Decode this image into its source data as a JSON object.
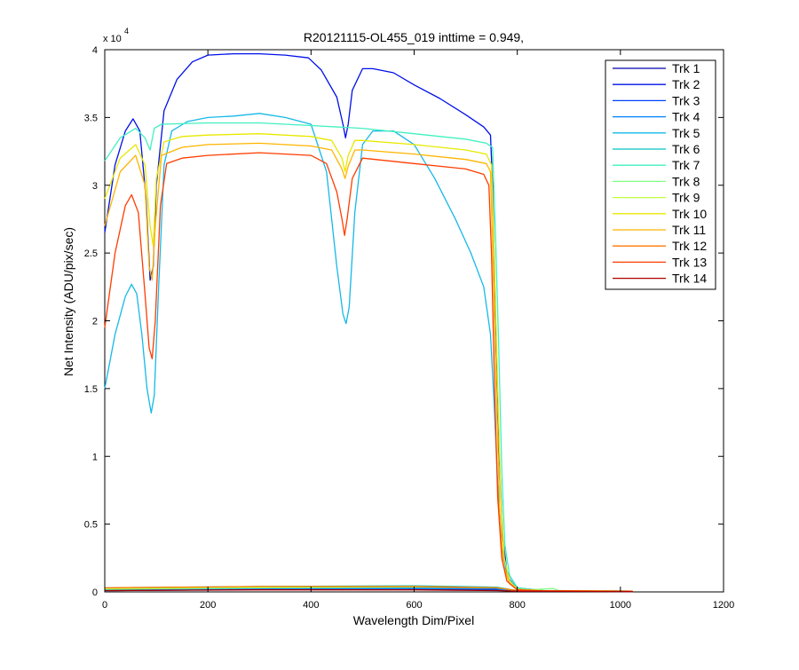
{
  "chart_data": {
    "type": "line",
    "title": "R20121115-OL455_019 inttime = 0.949,",
    "xlabel": "Wavelength Dim/Pixel",
    "ylabel": "Net Intensity (ADU/pix/sec)",
    "y_exponent_label": "x 10",
    "y_exponent_power": "4",
    "xlim": [
      0,
      1200
    ],
    "ylim": [
      0,
      40000
    ],
    "xticks": [
      0,
      200,
      400,
      600,
      800,
      1000,
      1200
    ],
    "xtick_labels": [
      "0",
      "200",
      "400",
      "600",
      "800",
      "1000",
      "1200"
    ],
    "yticks": [
      0,
      5000,
      10000,
      15000,
      20000,
      25000,
      30000,
      35000,
      40000
    ],
    "ytick_labels": [
      "0",
      "0.5",
      "1",
      "1.5",
      "2",
      "2.5",
      "3",
      "3.5",
      "4"
    ],
    "grid": false,
    "legend_position": "top-right",
    "series": [
      {
        "name": "Trk 1",
        "color": "#0000ad",
        "points": [
          [
            0,
            100
          ],
          [
            200,
            150
          ],
          [
            400,
            200
          ],
          [
            600,
            200
          ],
          [
            760,
            150
          ],
          [
            800,
            60
          ],
          [
            1024,
            30
          ]
        ]
      },
      {
        "name": "Trk 2",
        "color": "#0010e8",
        "points": [
          [
            0,
            26500
          ],
          [
            20,
            31500
          ],
          [
            40,
            34000
          ],
          [
            55,
            34900
          ],
          [
            68,
            34000
          ],
          [
            80,
            29000
          ],
          [
            88,
            23000
          ],
          [
            94,
            24000
          ],
          [
            100,
            30000
          ],
          [
            115,
            35500
          ],
          [
            140,
            37800
          ],
          [
            170,
            39100
          ],
          [
            200,
            39600
          ],
          [
            250,
            39700
          ],
          [
            300,
            39700
          ],
          [
            350,
            39600
          ],
          [
            395,
            39400
          ],
          [
            420,
            38500
          ],
          [
            450,
            36500
          ],
          [
            462,
            34500
          ],
          [
            467,
            33500
          ],
          [
            472,
            34500
          ],
          [
            480,
            37000
          ],
          [
            500,
            38600
          ],
          [
            520,
            38600
          ],
          [
            560,
            38300
          ],
          [
            600,
            37400
          ],
          [
            650,
            36400
          ],
          [
            700,
            35200
          ],
          [
            735,
            34300
          ],
          [
            748,
            33700
          ],
          [
            752,
            30000
          ],
          [
            758,
            20000
          ],
          [
            765,
            10000
          ],
          [
            772,
            4000
          ],
          [
            780,
            1500
          ],
          [
            800,
            300
          ],
          [
            850,
            100
          ],
          [
            1024,
            50
          ]
        ]
      },
      {
        "name": "Trk 3",
        "color": "#0042ff",
        "points": [
          [
            0,
            200
          ],
          [
            200,
            250
          ],
          [
            400,
            300
          ],
          [
            600,
            300
          ],
          [
            760,
            250
          ],
          [
            800,
            80
          ],
          [
            1024,
            40
          ]
        ]
      },
      {
        "name": "Trk 4",
        "color": "#0080ff",
        "points": [
          [
            0,
            150
          ],
          [
            300,
            250
          ],
          [
            600,
            250
          ],
          [
            760,
            200
          ],
          [
            800,
            60
          ],
          [
            1024,
            30
          ]
        ]
      },
      {
        "name": "Trk 5",
        "color": "#16b8e8",
        "points": [
          [
            0,
            15000
          ],
          [
            20,
            19000
          ],
          [
            40,
            21800
          ],
          [
            52,
            22700
          ],
          [
            62,
            22000
          ],
          [
            72,
            19000
          ],
          [
            82,
            15000
          ],
          [
            90,
            13200
          ],
          [
            96,
            14500
          ],
          [
            104,
            22000
          ],
          [
            115,
            31500
          ],
          [
            130,
            34000
          ],
          [
            160,
            34700
          ],
          [
            200,
            35000
          ],
          [
            250,
            35100
          ],
          [
            300,
            35300
          ],
          [
            350,
            35000
          ],
          [
            400,
            34500
          ],
          [
            430,
            31000
          ],
          [
            450,
            24000
          ],
          [
            462,
            20500
          ],
          [
            468,
            19800
          ],
          [
            474,
            21000
          ],
          [
            485,
            28000
          ],
          [
            500,
            33000
          ],
          [
            520,
            34000
          ],
          [
            560,
            34000
          ],
          [
            600,
            33000
          ],
          [
            640,
            30500
          ],
          [
            680,
            27500
          ],
          [
            710,
            25000
          ],
          [
            735,
            22500
          ],
          [
            748,
            19000
          ],
          [
            755,
            14000
          ],
          [
            762,
            8000
          ],
          [
            770,
            3500
          ],
          [
            780,
            1200
          ],
          [
            800,
            200
          ],
          [
            850,
            100
          ],
          [
            1024,
            50
          ]
        ]
      },
      {
        "name": "Trk 6",
        "color": "#00c4c4",
        "points": [
          [
            0,
            300
          ],
          [
            300,
            400
          ],
          [
            600,
            450
          ],
          [
            760,
            350
          ],
          [
            800,
            100
          ],
          [
            1024,
            50
          ]
        ]
      },
      {
        "name": "Trk 7",
        "color": "#40f0c0",
        "points": [
          [
            0,
            31800
          ],
          [
            30,
            33500
          ],
          [
            60,
            34200
          ],
          [
            78,
            33500
          ],
          [
            88,
            32600
          ],
          [
            96,
            34200
          ],
          [
            110,
            34500
          ],
          [
            200,
            34600
          ],
          [
            300,
            34600
          ],
          [
            400,
            34400
          ],
          [
            500,
            34200
          ],
          [
            600,
            33800
          ],
          [
            700,
            33400
          ],
          [
            740,
            33100
          ],
          [
            752,
            32800
          ],
          [
            758,
            26000
          ],
          [
            764,
            18000
          ],
          [
            770,
            9000
          ],
          [
            776,
            3500
          ],
          [
            785,
            1200
          ],
          [
            800,
            300
          ],
          [
            850,
            100
          ],
          [
            1024,
            50
          ]
        ]
      },
      {
        "name": "Trk 8",
        "color": "#80ff80",
        "points": [
          [
            0,
            200
          ],
          [
            300,
            300
          ],
          [
            600,
            350
          ],
          [
            760,
            300
          ],
          [
            800,
            100
          ],
          [
            870,
            250
          ],
          [
            880,
            100
          ],
          [
            1024,
            50
          ]
        ]
      },
      {
        "name": "Trk 9",
        "color": "#c0ff40",
        "points": [
          [
            0,
            250
          ],
          [
            300,
            350
          ],
          [
            600,
            400
          ],
          [
            760,
            300
          ],
          [
            800,
            100
          ],
          [
            1024,
            50
          ]
        ]
      },
      {
        "name": "Trk 10",
        "color": "#e8e800",
        "points": [
          [
            0,
            29000
          ],
          [
            30,
            32000
          ],
          [
            60,
            33000
          ],
          [
            78,
            31500
          ],
          [
            88,
            27000
          ],
          [
            94,
            25500
          ],
          [
            100,
            30500
          ],
          [
            115,
            33200
          ],
          [
            150,
            33600
          ],
          [
            200,
            33700
          ],
          [
            300,
            33800
          ],
          [
            400,
            33600
          ],
          [
            440,
            33300
          ],
          [
            460,
            32000
          ],
          [
            466,
            31000
          ],
          [
            472,
            32200
          ],
          [
            485,
            33300
          ],
          [
            500,
            33300
          ],
          [
            600,
            33000
          ],
          [
            700,
            32600
          ],
          [
            740,
            32300
          ],
          [
            750,
            31500
          ],
          [
            756,
            24000
          ],
          [
            762,
            15000
          ],
          [
            768,
            7000
          ],
          [
            775,
            2500
          ],
          [
            785,
            800
          ],
          [
            800,
            200
          ],
          [
            850,
            100
          ],
          [
            1024,
            50
          ]
        ]
      },
      {
        "name": "Trk 11",
        "color": "#ffb400",
        "points": [
          [
            0,
            27000
          ],
          [
            30,
            31000
          ],
          [
            60,
            32200
          ],
          [
            78,
            30000
          ],
          [
            86,
            24000
          ],
          [
            92,
            23000
          ],
          [
            98,
            27000
          ],
          [
            110,
            32200
          ],
          [
            150,
            32800
          ],
          [
            200,
            33000
          ],
          [
            300,
            33100
          ],
          [
            400,
            32900
          ],
          [
            440,
            32600
          ],
          [
            460,
            31200
          ],
          [
            466,
            30500
          ],
          [
            472,
            31400
          ],
          [
            485,
            32600
          ],
          [
            500,
            32600
          ],
          [
            600,
            32300
          ],
          [
            700,
            31900
          ],
          [
            740,
            31600
          ],
          [
            748,
            31000
          ],
          [
            754,
            23000
          ],
          [
            760,
            14000
          ],
          [
            766,
            6000
          ],
          [
            773,
            2000
          ],
          [
            785,
            600
          ],
          [
            800,
            150
          ],
          [
            850,
            80
          ],
          [
            1024,
            40
          ]
        ]
      },
      {
        "name": "Trk 12",
        "color": "#ff7800",
        "points": [
          [
            0,
            300
          ],
          [
            300,
            400
          ],
          [
            600,
            400
          ],
          [
            760,
            300
          ],
          [
            800,
            100
          ],
          [
            1024,
            50
          ]
        ]
      },
      {
        "name": "Trk 13",
        "color": "#ff3c00",
        "points": [
          [
            0,
            19500
          ],
          [
            20,
            25000
          ],
          [
            40,
            28500
          ],
          [
            52,
            29300
          ],
          [
            65,
            28000
          ],
          [
            78,
            22000
          ],
          [
            86,
            18000
          ],
          [
            92,
            17200
          ],
          [
            98,
            20000
          ],
          [
            108,
            28500
          ],
          [
            120,
            31600
          ],
          [
            150,
            32000
          ],
          [
            200,
            32200
          ],
          [
            300,
            32400
          ],
          [
            400,
            32200
          ],
          [
            430,
            31600
          ],
          [
            450,
            29500
          ],
          [
            460,
            27500
          ],
          [
            465,
            26300
          ],
          [
            470,
            27500
          ],
          [
            480,
            30500
          ],
          [
            500,
            32000
          ],
          [
            600,
            31600
          ],
          [
            700,
            31200
          ],
          [
            735,
            30800
          ],
          [
            745,
            30000
          ],
          [
            750,
            25000
          ],
          [
            756,
            15000
          ],
          [
            762,
            7000
          ],
          [
            770,
            2500
          ],
          [
            780,
            800
          ],
          [
            800,
            150
          ],
          [
            850,
            80
          ],
          [
            1024,
            40
          ]
        ]
      },
      {
        "name": "Trk 14",
        "color": "#ad0000",
        "points": [
          [
            0,
            100
          ],
          [
            300,
            150
          ],
          [
            600,
            150
          ],
          [
            760,
            100
          ],
          [
            800,
            50
          ],
          [
            1024,
            20
          ]
        ]
      }
    ]
  }
}
